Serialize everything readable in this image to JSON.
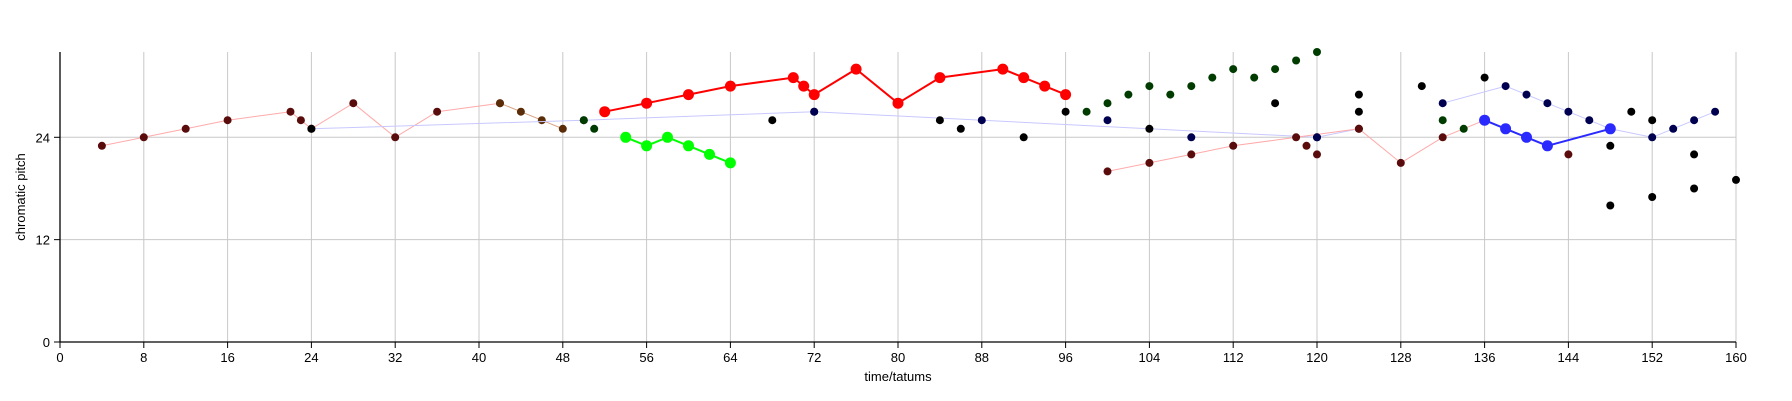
{
  "chart_data": {
    "type": "scatter",
    "xlabel": "time/tatums",
    "ylabel": "chromatic pitch",
    "xlim": [
      0,
      160
    ],
    "ylim": [
      0,
      34
    ],
    "xticks": [
      0,
      8,
      16,
      24,
      32,
      40,
      48,
      56,
      64,
      72,
      80,
      88,
      96,
      104,
      112,
      120,
      128,
      136,
      144,
      152,
      160
    ],
    "yticks": [
      0,
      12,
      24
    ],
    "grid": true,
    "series": [
      {
        "color": "#ffaaaa",
        "style": "thin",
        "marker": "#5a0c0c",
        "size": "small",
        "points": [
          [
            4,
            23
          ],
          [
            8,
            24
          ],
          [
            12,
            25
          ],
          [
            16,
            26
          ],
          [
            22,
            27
          ],
          [
            24,
            25
          ],
          [
            28,
            28
          ],
          [
            32,
            24
          ],
          [
            36,
            27
          ],
          [
            42,
            28
          ]
        ]
      },
      {
        "color": "#d8a080",
        "style": "thin",
        "marker": "#5a2d08",
        "size": "small",
        "points": [
          [
            42,
            28
          ],
          [
            44,
            27
          ],
          [
            46,
            26
          ],
          [
            48,
            25
          ]
        ]
      },
      {
        "color": "#c8c8ff",
        "style": "thin",
        "marker": "#000000",
        "size": "small",
        "points": [
          [
            24,
            25
          ],
          [
            50,
            26
          ],
          [
            72,
            27
          ],
          [
            104,
            25
          ],
          [
            120,
            24
          ],
          [
            124,
            25
          ]
        ]
      },
      {
        "color": "#ff0000",
        "style": "thick",
        "marker": "#ff0000",
        "size": "large",
        "points": [
          [
            52,
            27
          ],
          [
            56,
            28
          ],
          [
            60,
            29
          ],
          [
            64,
            30
          ],
          [
            70,
            31
          ],
          [
            71,
            30
          ],
          [
            72,
            29
          ],
          [
            76,
            32
          ],
          [
            80,
            28
          ],
          [
            84,
            31
          ],
          [
            90,
            32
          ],
          [
            92,
            31
          ],
          [
            94,
            30
          ],
          [
            96,
            29
          ]
        ]
      },
      {
        "color": "#00ff00",
        "style": "thick",
        "marker": "#00ff00",
        "size": "large",
        "points": [
          [
            54,
            24
          ],
          [
            56,
            23
          ],
          [
            58,
            24
          ],
          [
            60,
            23
          ],
          [
            62,
            22
          ],
          [
            64,
            21
          ]
        ]
      },
      {
        "color": "#ffaaaa",
        "style": "thin",
        "marker": "#5a0c0c",
        "size": "small",
        "points": [
          [
            100,
            20
          ],
          [
            104,
            21
          ],
          [
            108,
            22
          ],
          [
            112,
            23
          ],
          [
            118,
            24
          ],
          [
            124,
            25
          ],
          [
            128,
            21
          ],
          [
            132,
            24
          ],
          [
            136,
            26
          ]
        ]
      },
      {
        "color": "#c8c8ff",
        "style": "thin",
        "marker": "#000050",
        "size": "small",
        "points": [
          [
            132,
            28
          ],
          [
            138,
            30
          ],
          [
            140,
            29
          ],
          [
            142,
            28
          ],
          [
            144,
            27
          ],
          [
            146,
            26
          ],
          [
            148,
            25
          ],
          [
            152,
            24
          ],
          [
            154,
            25
          ],
          [
            156,
            26
          ],
          [
            158,
            27
          ]
        ]
      },
      {
        "color": "#2a2aff",
        "style": "thick",
        "marker": "#2a2aff",
        "size": "large",
        "points": [
          [
            136,
            26
          ],
          [
            138,
            25
          ],
          [
            140,
            24
          ],
          [
            142,
            23
          ],
          [
            148,
            25
          ]
        ]
      },
      {
        "color": "none",
        "style": "none",
        "marker": "#003c00",
        "size": "small",
        "points": [
          [
            50,
            26
          ],
          [
            51,
            25
          ],
          [
            98,
            27
          ],
          [
            100,
            28
          ],
          [
            102,
            29
          ],
          [
            104,
            30
          ],
          [
            106,
            29
          ],
          [
            108,
            30
          ],
          [
            110,
            31
          ],
          [
            112,
            32
          ],
          [
            114,
            31
          ],
          [
            116,
            32
          ],
          [
            118,
            33
          ],
          [
            120,
            34
          ],
          [
            132,
            26
          ],
          [
            134,
            25
          ]
        ]
      },
      {
        "color": "none",
        "style": "none",
        "marker": "#000000",
        "size": "small",
        "points": [
          [
            68,
            26
          ],
          [
            84,
            26
          ],
          [
            86,
            25
          ],
          [
            92,
            24
          ],
          [
            96,
            27
          ],
          [
            116,
            28
          ],
          [
            124,
            29
          ],
          [
            124,
            27
          ],
          [
            130,
            30
          ],
          [
            136,
            31
          ],
          [
            148,
            23
          ],
          [
            148,
            16
          ],
          [
            150,
            27
          ],
          [
            152,
            26
          ],
          [
            152,
            17
          ],
          [
            156,
            22
          ],
          [
            156,
            18
          ],
          [
            160,
            19
          ]
        ]
      },
      {
        "color": "none",
        "style": "none",
        "marker": "#000050",
        "size": "small",
        "points": [
          [
            72,
            27
          ],
          [
            88,
            26
          ],
          [
            100,
            26
          ],
          [
            108,
            24
          ],
          [
            120,
            24
          ]
        ]
      },
      {
        "color": "none",
        "style": "none",
        "marker": "#5a0c0c",
        "size": "small",
        "points": [
          [
            23,
            26
          ],
          [
            119,
            23
          ],
          [
            120,
            22
          ],
          [
            144,
            22
          ]
        ]
      }
    ]
  }
}
